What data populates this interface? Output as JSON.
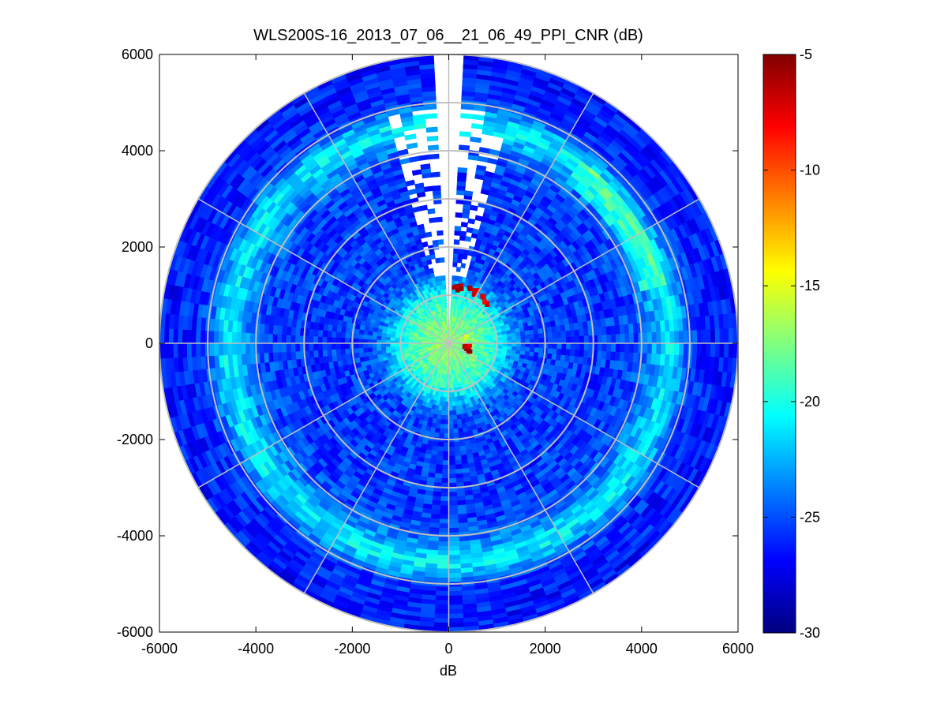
{
  "chart_data": {
    "type": "heatmap",
    "subtype": "polar-ppi-scan",
    "title": "WLS200S-16_2013_07_06__21_06_49_PPI_CNR (dB)",
    "xlabel": "dB",
    "ylabel": "",
    "xlim": [
      -6000,
      6000
    ],
    "ylim": [
      -6000,
      6000
    ],
    "xticks": [
      -6000,
      -4000,
      -2000,
      0,
      2000,
      4000,
      6000
    ],
    "yticks": [
      6000,
      4000,
      2000,
      0,
      -2000,
      -4000,
      -6000
    ],
    "xtick_labels": [
      "-6000",
      "-4000",
      "-2000",
      "0",
      "2000",
      "4000",
      "6000"
    ],
    "ytick_labels": [
      "6000",
      "4000",
      "2000",
      "0",
      "-2000",
      "-4000",
      "-6000"
    ],
    "max_range": 6000,
    "range_rings": [
      1000,
      2000,
      3000,
      4000,
      5000,
      6000
    ],
    "radial_lines_deg": [
      0,
      30,
      60,
      90,
      120,
      150,
      180,
      210,
      240,
      270,
      300,
      330
    ],
    "grid": true,
    "no_data_sector_deg": [
      -4,
      4
    ],
    "colormap": "jet",
    "colorbar": {
      "clim": [
        -30,
        -5
      ],
      "ticks": [
        -5,
        -10,
        -15,
        -20,
        -25,
        -30
      ],
      "tick_labels": [
        "-5",
        "-10",
        "-15",
        "-20",
        "-25",
        "-30"
      ],
      "placement": "right"
    },
    "cnr_profile": {
      "range": [
        0,
        250,
        500,
        900,
        1100,
        1300,
        1600,
        2000,
        2500,
        3000,
        3500,
        3900,
        4200,
        4450,
        4650,
        4800,
        5000,
        5300,
        6000
      ],
      "cnr_db": [
        -17,
        -17.5,
        -18,
        -19.5,
        -21,
        -23,
        -25,
        -25.5,
        -25.5,
        -25.5,
        -25.5,
        -25,
        -23.5,
        -21.5,
        -21,
        -22.5,
        -25,
        -26,
        -26.5
      ]
    },
    "hot_spots": [
      {
        "azimuth_deg": 10,
        "range": 1150,
        "cnr_db": -6
      },
      {
        "azimuth_deg": 25,
        "range": 1180,
        "cnr_db": -7
      },
      {
        "azimuth_deg": 40,
        "range": 1150,
        "cnr_db": -8
      },
      {
        "azimuth_deg": 108,
        "range": 450,
        "cnr_db": -6
      },
      {
        "azimuth_deg": 98,
        "range": 380,
        "cnr_db": -7
      },
      {
        "azimuth_deg": 75,
        "range": 320,
        "cnr_db": -16
      },
      {
        "azimuth_deg": 120,
        "range": 600,
        "cnr_db": -17
      }
    ]
  }
}
